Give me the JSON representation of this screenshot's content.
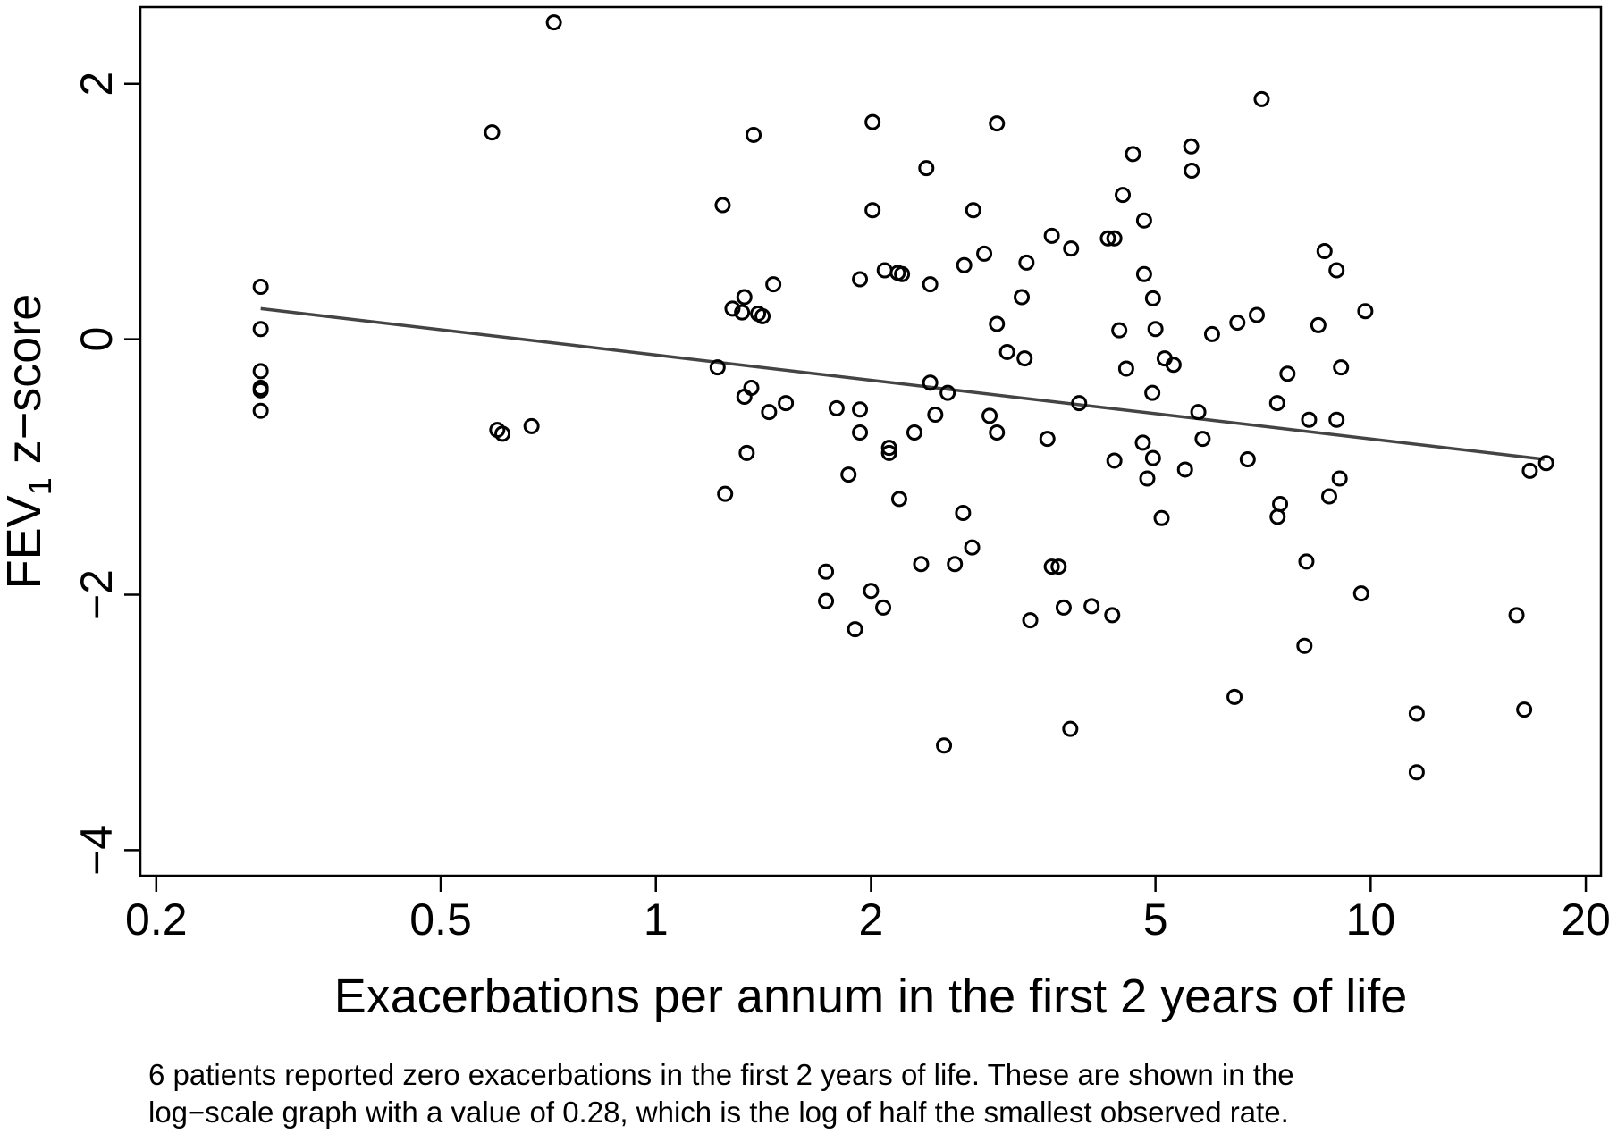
{
  "chart_data": {
    "type": "scatter",
    "xlabel": "Exacerbations per annum in the first 2 years of life",
    "ylabel_main": "FEV",
    "ylabel_sub": "1",
    "ylabel_rest": " z−score",
    "xscale": "log",
    "xlim": [
      0.19,
      21
    ],
    "ylim": [
      -4.2,
      2.6
    ],
    "xticks": [
      {
        "value": 0.2,
        "label": "0.2"
      },
      {
        "value": 0.5,
        "label": "0.5"
      },
      {
        "value": 1,
        "label": "1"
      },
      {
        "value": 2,
        "label": "2"
      },
      {
        "value": 5,
        "label": "5"
      },
      {
        "value": 10,
        "label": "10"
      },
      {
        "value": 20,
        "label": "20"
      }
    ],
    "yticks": [
      {
        "value": 2,
        "label": "2"
      },
      {
        "value": 0,
        "label": "0"
      },
      {
        "value": -2,
        "label": "−2"
      },
      {
        "value": -4,
        "label": "−4"
      }
    ],
    "grid": false,
    "legend": "none",
    "marker": "hollow-circle",
    "fit_line": {
      "x": [
        0.28,
        17.5
      ],
      "y": [
        0.24,
        -0.94
      ],
      "color": "#444444"
    },
    "points": [
      [
        0.72,
        2.48
      ],
      [
        0.59,
        1.62
      ],
      [
        0.6,
        -0.71
      ],
      [
        0.61,
        -0.74
      ],
      [
        0.67,
        -0.68
      ],
      [
        0.28,
        0.41
      ],
      [
        0.28,
        0.08
      ],
      [
        0.28,
        -0.25
      ],
      [
        0.28,
        -0.38
      ],
      [
        0.28,
        -0.4
      ],
      [
        0.28,
        -0.56
      ],
      [
        1.24,
        1.05
      ],
      [
        1.37,
        1.6
      ],
      [
        1.28,
        0.24
      ],
      [
        1.32,
        0.21
      ],
      [
        1.33,
        0.33
      ],
      [
        1.39,
        0.2
      ],
      [
        1.41,
        0.18
      ],
      [
        1.46,
        0.43
      ],
      [
        1.22,
        -0.22
      ],
      [
        1.33,
        -0.45
      ],
      [
        1.36,
        -0.38
      ],
      [
        1.44,
        -0.57
      ],
      [
        1.52,
        -0.5
      ],
      [
        1.34,
        -0.89
      ],
      [
        1.25,
        -1.21
      ],
      [
        2.01,
        1.7
      ],
      [
        2.01,
        1.01
      ],
      [
        1.93,
        0.47
      ],
      [
        2.09,
        0.54
      ],
      [
        2.18,
        0.52
      ],
      [
        2.21,
        0.51
      ],
      [
        2.39,
        1.34
      ],
      [
        2.42,
        0.43
      ],
      [
        1.79,
        -0.54
      ],
      [
        1.93,
        -0.55
      ],
      [
        1.93,
        -0.73
      ],
      [
        2.12,
        -0.85
      ],
      [
        2.12,
        -0.89
      ],
      [
        1.86,
        -1.06
      ],
      [
        2.19,
        -1.25
      ],
      [
        2.42,
        -0.34
      ],
      [
        2.56,
        -0.42
      ],
      [
        2.46,
        -0.59
      ],
      [
        2.3,
        -0.73
      ],
      [
        1.73,
        -1.82
      ],
      [
        1.73,
        -2.05
      ],
      [
        2.0,
        -1.97
      ],
      [
        2.08,
        -2.1
      ],
      [
        1.9,
        -2.27
      ],
      [
        2.35,
        -1.76
      ],
      [
        2.62,
        -1.76
      ],
      [
        2.69,
        -1.36
      ],
      [
        2.77,
        -1.63
      ],
      [
        2.53,
        -3.18
      ],
      [
        3.0,
        1.69
      ],
      [
        2.78,
        1.01
      ],
      [
        2.88,
        0.67
      ],
      [
        2.7,
        0.58
      ],
      [
        3.3,
        0.6
      ],
      [
        3.25,
        0.33
      ],
      [
        3.0,
        0.12
      ],
      [
        3.1,
        -0.1
      ],
      [
        3.28,
        -0.15
      ],
      [
        2.93,
        -0.6
      ],
      [
        3.0,
        -0.73
      ],
      [
        3.34,
        -2.2
      ],
      [
        3.53,
        -0.78
      ],
      [
        3.58,
        0.81
      ],
      [
        3.81,
        0.71
      ],
      [
        3.58,
        -1.78
      ],
      [
        3.66,
        -1.78
      ],
      [
        3.72,
        -2.1
      ],
      [
        4.07,
        -2.09
      ],
      [
        3.8,
        -3.05
      ],
      [
        3.91,
        -0.5
      ],
      [
        4.29,
        0.79
      ],
      [
        4.38,
        0.79
      ],
      [
        4.5,
        1.13
      ],
      [
        4.65,
        1.45
      ],
      [
        4.82,
        0.93
      ],
      [
        4.82,
        0.51
      ],
      [
        4.96,
        0.32
      ],
      [
        4.45,
        0.07
      ],
      [
        5.0,
        0.08
      ],
      [
        4.55,
        -0.23
      ],
      [
        5.15,
        -0.15
      ],
      [
        5.3,
        -0.2
      ],
      [
        4.95,
        -0.42
      ],
      [
        4.38,
        -0.95
      ],
      [
        4.8,
        -0.81
      ],
      [
        4.96,
        -0.93
      ],
      [
        4.87,
        -1.09
      ],
      [
        5.1,
        -1.4
      ],
      [
        4.35,
        -2.16
      ],
      [
        5.61,
        1.51
      ],
      [
        5.62,
        1.32
      ],
      [
        5.74,
        -0.57
      ],
      [
        5.82,
        -0.78
      ],
      [
        5.5,
        -1.02
      ],
      [
        6.0,
        0.04
      ],
      [
        6.51,
        0.13
      ],
      [
        6.93,
        0.19
      ],
      [
        7.04,
        1.88
      ],
      [
        6.73,
        -0.94
      ],
      [
        7.4,
        -0.5
      ],
      [
        7.47,
        -1.29
      ],
      [
        7.41,
        -1.39
      ],
      [
        7.65,
        -0.27
      ],
      [
        8.2,
        -0.63
      ],
      [
        8.13,
        -1.74
      ],
      [
        8.08,
        -2.4
      ],
      [
        6.45,
        -2.8
      ],
      [
        8.45,
        0.11
      ],
      [
        8.62,
        0.69
      ],
      [
        8.75,
        -1.23
      ],
      [
        8.96,
        0.54
      ],
      [
        9.09,
        -0.22
      ],
      [
        8.96,
        -0.63
      ],
      [
        9.05,
        -1.09
      ],
      [
        9.83,
        0.22
      ],
      [
        9.7,
        -1.99
      ],
      [
        11.6,
        -2.93
      ],
      [
        11.6,
        -3.39
      ],
      [
        16.0,
        -2.16
      ],
      [
        16.4,
        -2.9
      ],
      [
        16.7,
        -1.03
      ],
      [
        17.6,
        -0.97
      ]
    ]
  },
  "footnote": {
    "line1": "6 patients reported zero exacerbations in the first 2 years of life. These are shown in the",
    "line2": "log−scale graph with a value of 0.28, which is the log of half the smallest observed rate."
  }
}
